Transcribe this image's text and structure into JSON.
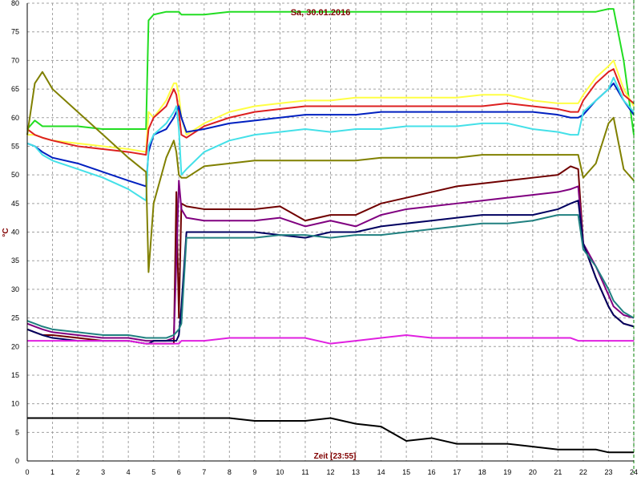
{
  "chart_data": {
    "type": "line",
    "title": "Sa, 30.01.2016",
    "x_label": "Zeit [23:55]",
    "y_label": "°C",
    "xlim": [
      0,
      24
    ],
    "ylim": [
      0,
      80
    ],
    "xticks": [
      0,
      1,
      2,
      3,
      4,
      5,
      6,
      7,
      8,
      9,
      10,
      11,
      12,
      13,
      14,
      15,
      16,
      17,
      18,
      19,
      20,
      21,
      22,
      23,
      24
    ],
    "yticks": [
      0,
      5,
      10,
      15,
      20,
      25,
      30,
      35,
      40,
      45,
      50,
      55,
      60,
      65,
      70,
      75,
      80
    ],
    "grid": true,
    "x": [
      0,
      0.3,
      0.6,
      1,
      2,
      3,
      4,
      4.7,
      4.8,
      5,
      5.5,
      5.8,
      5.9,
      6,
      6.1,
      6.3,
      7,
      8,
      9,
      10,
      11,
      12,
      13,
      14,
      15,
      16,
      17,
      18,
      19,
      20,
      21,
      21.5,
      21.8,
      22,
      22.5,
      23,
      23.2,
      23.6,
      24
    ],
    "series": [
      {
        "color": "#22dd22",
        "values": [
          58,
          59.5,
          58.5,
          58.5,
          58.5,
          58,
          58,
          58,
          77,
          78,
          78.5,
          78.5,
          78.5,
          78.5,
          78,
          78,
          78,
          78.5,
          78.5,
          78.5,
          78.5,
          78.5,
          78.5,
          78.5,
          78.5,
          78.5,
          78.5,
          78.5,
          78.5,
          78.5,
          78.5,
          78.5,
          78.5,
          78.5,
          78.5,
          79,
          79,
          70,
          57
        ]
      },
      {
        "color": "#ffff44",
        "values": [
          57,
          57,
          56.5,
          56,
          55.5,
          55,
          54.5,
          54,
          61,
          60,
          63,
          66,
          66,
          64,
          60,
          57,
          59,
          61,
          62,
          62.5,
          63,
          63,
          63.5,
          63.5,
          63.5,
          63.5,
          63.5,
          64,
          64,
          63,
          62.5,
          62.5,
          62.5,
          64,
          67,
          69,
          70,
          65,
          62
        ]
      },
      {
        "color": "#dd2020",
        "values": [
          58,
          57,
          56.5,
          56,
          55,
          54.5,
          54,
          53.5,
          58,
          60,
          62,
          65,
          64,
          61,
          57,
          56.5,
          58.5,
          60,
          61,
          61.5,
          62,
          62,
          62,
          62,
          62,
          62,
          62,
          62,
          62.5,
          62,
          61.5,
          61,
          61,
          63,
          66,
          68,
          68.5,
          64,
          62.5
        ]
      },
      {
        "color": "#0020c0",
        "values": [
          55.5,
          55,
          54,
          53,
          52,
          50.5,
          49,
          48,
          54,
          57,
          58,
          60,
          61,
          62,
          60,
          57.5,
          58,
          59,
          59.5,
          60,
          60.5,
          60.5,
          60.5,
          61,
          61,
          61,
          61,
          61,
          61,
          61,
          60.5,
          60,
          60,
          60.5,
          63,
          65,
          66,
          63,
          60.5
        ]
      },
      {
        "color": "#44e0e8",
        "values": [
          55.5,
          55,
          53.5,
          52.5,
          51,
          49.5,
          47.5,
          45.5,
          55,
          57,
          59,
          61,
          62,
          58,
          50,
          51,
          54,
          56,
          57,
          57.5,
          58,
          57.5,
          58,
          58,
          58.5,
          58.5,
          58.5,
          59,
          59,
          58,
          57.5,
          57,
          57,
          61,
          63,
          65,
          67,
          63,
          61
        ]
      },
      {
        "color": "#808000",
        "values": [
          57,
          66,
          68,
          65,
          61,
          57,
          53,
          50.5,
          33,
          45,
          53,
          56,
          54,
          50,
          49.5,
          49.5,
          51.5,
          52,
          52.5,
          52.5,
          52.5,
          52.5,
          52.5,
          53,
          53,
          53,
          53,
          53.5,
          53.5,
          53.5,
          53.5,
          53.5,
          53.5,
          49.5,
          52,
          59,
          60,
          51,
          49
        ]
      },
      {
        "color": "#700000",
        "values": [
          23,
          22.5,
          22,
          22,
          21.5,
          21,
          21,
          20.5,
          20.5,
          20.5,
          20.5,
          20.5,
          47,
          25,
          45,
          44.5,
          44,
          44,
          44,
          44.5,
          42,
          43,
          43,
          45,
          46,
          47,
          48,
          48.5,
          49,
          49.5,
          50,
          51.5,
          51,
          38,
          32,
          27,
          25.5,
          24,
          23.5
        ]
      },
      {
        "color": "#800080",
        "values": [
          24,
          23.5,
          23,
          22.5,
          22,
          21.5,
          21.5,
          21,
          21,
          21,
          21,
          21.5,
          35,
          49,
          44,
          42.5,
          42,
          42,
          42,
          42.5,
          41,
          42,
          41,
          43,
          44,
          44.5,
          45,
          45.5,
          46,
          46.5,
          47,
          47.5,
          48,
          38,
          34,
          29,
          27,
          25.5,
          25
        ]
      },
      {
        "color": "#000060",
        "values": [
          23,
          22.5,
          22,
          21.5,
          21,
          21,
          21,
          20.5,
          20.5,
          21,
          21,
          21,
          21,
          22,
          27,
          40,
          40,
          40,
          40,
          39.5,
          39,
          40,
          40,
          41,
          41.5,
          42,
          42.5,
          43,
          43,
          43,
          44,
          45,
          45.5,
          38,
          32,
          27,
          25.5,
          24,
          23.5
        ]
      },
      {
        "color": "#208080",
        "values": [
          24.5,
          24,
          23.5,
          23,
          22.5,
          22,
          22,
          21.5,
          21.5,
          21.5,
          21.5,
          22,
          22.5,
          23,
          24,
          39,
          39,
          39,
          39,
          39.5,
          39.5,
          39,
          39.5,
          39.5,
          40,
          40.5,
          41,
          41.5,
          41.5,
          42,
          43,
          43,
          43,
          37,
          34,
          30,
          28,
          26,
          25
        ]
      },
      {
        "color": "#e020e0",
        "values": [
          21,
          21,
          21,
          21,
          21,
          21,
          21,
          20.5,
          20.5,
          20.5,
          20.5,
          20.5,
          20.5,
          20.5,
          21,
          21,
          21,
          21.5,
          21.5,
          21.5,
          21.5,
          20.5,
          21,
          21.5,
          22,
          21.5,
          21.5,
          21.5,
          21.5,
          21.5,
          21.5,
          21.5,
          21,
          21,
          21,
          21,
          21,
          21,
          21
        ]
      },
      {
        "color": "#000000",
        "values": [
          7.5,
          7.5,
          7.5,
          7.5,
          7.5,
          7.5,
          7.5,
          7.5,
          7.5,
          7.5,
          7.5,
          7.5,
          7.5,
          7.5,
          7.5,
          7.5,
          7.5,
          7.5,
          7,
          7,
          7,
          7.5,
          6.5,
          6,
          3.5,
          4,
          3,
          3,
          3,
          2.5,
          2,
          2,
          2,
          2,
          2,
          1.5,
          1.5,
          1.5,
          1.5
        ]
      }
    ]
  }
}
